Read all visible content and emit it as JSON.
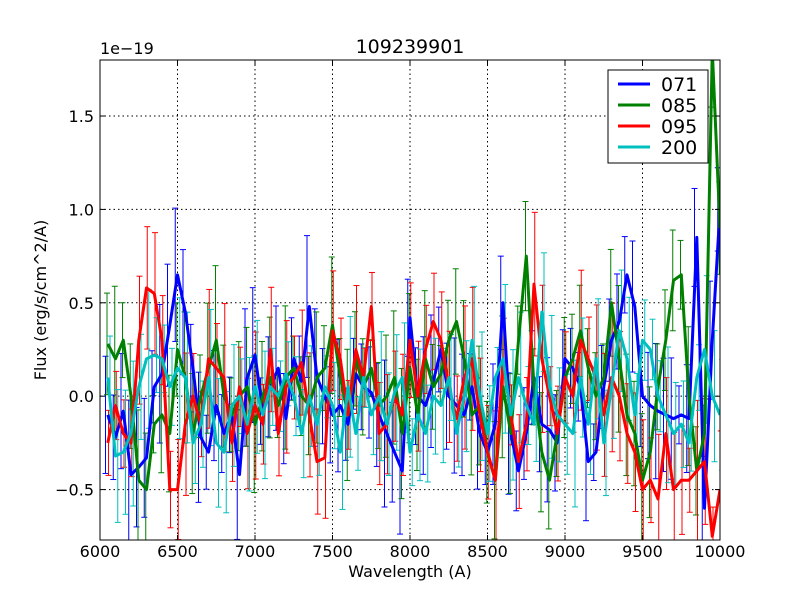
{
  "chart_data": {
    "type": "line",
    "title": "109239901",
    "xlabel": "Wavelength (A)",
    "ylabel": "Flux (erg/s/cm^2/A)",
    "offset_label": "1e−19",
    "xlim": [
      6000,
      10000
    ],
    "ylim": [
      -0.77,
      1.8
    ],
    "grid": true,
    "legend_position": "top-right",
    "x_ticks": [
      6000,
      6500,
      7000,
      7500,
      8000,
      8500,
      9000,
      9500,
      10000
    ],
    "x_tick_labels": [
      "6000",
      "6500",
      "7000",
      "7500",
      "8000",
      "8500",
      "9000",
      "9500",
      "10000"
    ],
    "y_ticks": [
      -0.5,
      0.0,
      0.5,
      1.0,
      1.5
    ],
    "y_tick_labels": [
      "−0.5",
      "0.0",
      "0.5",
      "1.0",
      "1.5"
    ],
    "x": [
      6050,
      6100,
      6150,
      6200,
      6250,
      6300,
      6350,
      6400,
      6450,
      6500,
      6550,
      6600,
      6650,
      6700,
      6750,
      6800,
      6850,
      6900,
      6950,
      7000,
      7050,
      7100,
      7150,
      7200,
      7250,
      7300,
      7350,
      7400,
      7450,
      7500,
      7550,
      7600,
      7650,
      7700,
      7750,
      7800,
      7850,
      7900,
      7950,
      8000,
      8050,
      8100,
      8150,
      8200,
      8250,
      8300,
      8350,
      8400,
      8450,
      8500,
      8550,
      8600,
      8650,
      8700,
      8750,
      8800,
      8850,
      8900,
      8950,
      9000,
      9050,
      9100,
      9150,
      9200,
      9250,
      9300,
      9350,
      9400,
      9450,
      9500,
      9550,
      9600,
      9650,
      9700,
      9750,
      9800,
      9850,
      9900,
      9950,
      10000
    ],
    "series": [
      {
        "name": "071",
        "color": "#0000ff",
        "values": [
          -0.1,
          -0.22,
          -0.08,
          -0.42,
          -0.38,
          -0.33,
          0.05,
          0.12,
          0.38,
          0.65,
          0.45,
          0.15,
          -0.22,
          -0.3,
          -0.05,
          -0.2,
          -0.1,
          -0.42,
          0.1,
          0.22,
          -0.08,
          0.05,
          0.15,
          -0.12,
          0.2,
          0.08,
          0.48,
          0.1,
          0.0,
          -0.1,
          -0.05,
          -0.15,
          0.12,
          0.05,
          0.02,
          -0.1,
          -0.2,
          -0.3,
          -0.4,
          0.42,
          0.0,
          -0.05,
          0.08,
          0.25,
          0.0,
          -0.05,
          -0.1,
          0.05,
          -0.2,
          -0.3,
          -0.15,
          0.5,
          -0.2,
          -0.4,
          -0.2,
          0.1,
          -0.15,
          -0.18,
          -0.25,
          0.2,
          0.15,
          0.05,
          -0.35,
          -0.3,
          0.05,
          0.3,
          0.4,
          0.65,
          0.48,
          0.0,
          -0.05,
          -0.08,
          -0.1,
          -0.12,
          -0.1,
          -0.12,
          0.85,
          -0.6,
          0.3,
          1.0
        ]
      },
      {
        "name": "085",
        "color": "#008000",
        "values": [
          0.28,
          0.2,
          0.3,
          0.0,
          -0.45,
          -0.5,
          -0.15,
          -0.1,
          -0.2,
          0.25,
          0.1,
          -0.2,
          0.0,
          0.15,
          0.3,
          0.0,
          -0.1,
          0.0,
          0.05,
          -0.15,
          0.0,
          0.1,
          -0.05,
          0.1,
          0.15,
          0.0,
          -0.05,
          0.1,
          0.15,
          0.38,
          0.1,
          -0.1,
          0.2,
          0.05,
          0.15,
          -0.05,
          0.0,
          0.1,
          -0.2,
          0.15,
          -0.1,
          0.2,
          0.05,
          0.12,
          0.3,
          0.4,
          0.2,
          -0.1,
          -0.05,
          -0.3,
          -0.45,
          0.05,
          -0.2,
          0.3,
          0.75,
          0.05,
          -0.3,
          -0.45,
          -0.2,
          0.1,
          0.2,
          0.35,
          0.15,
          0.0,
          0.1,
          0.5,
          0.2,
          -0.1,
          -0.2,
          -0.45,
          -0.3,
          0.05,
          0.3,
          0.62,
          0.65,
          0.0,
          -0.4,
          -0.2,
          1.85,
          0.9
        ]
      },
      {
        "name": "095",
        "color": "#ff0000",
        "values": [
          -0.25,
          -0.05,
          -0.2,
          -0.25,
          0.3,
          0.58,
          0.55,
          0.3,
          -0.5,
          -0.5,
          -0.15,
          0.0,
          -0.15,
          0.2,
          0.15,
          0.1,
          -0.25,
          0.05,
          -0.2,
          -0.05,
          -0.15,
          0.25,
          -0.2,
          0.05,
          0.1,
          0.18,
          -0.1,
          -0.35,
          -0.33,
          0.35,
          0.2,
          -0.1,
          0.25,
          0.1,
          0.48,
          -0.2,
          -0.15,
          0.0,
          -0.1,
          0.3,
          0.0,
          0.25,
          0.4,
          0.3,
          0.05,
          -0.12,
          0.1,
          0.2,
          -0.1,
          -0.3,
          -0.45,
          0.2,
          -0.1,
          -0.35,
          -0.15,
          0.6,
          0.2,
          0.0,
          -0.2,
          0.1,
          0.0,
          0.3,
          0.2,
          0.1,
          -0.1,
          0.1,
          0.0,
          -0.2,
          -0.3,
          -0.5,
          -0.45,
          -0.55,
          -0.2,
          -0.5,
          -0.45,
          -0.45,
          -0.4,
          -0.35,
          -0.75,
          -0.5
        ]
      },
      {
        "name": "200",
        "color": "#00bfbf",
        "values": [
          0.1,
          -0.32,
          -0.3,
          -0.2,
          0.05,
          0.2,
          0.22,
          0.2,
          0.05,
          0.15,
          0.1,
          -0.25,
          -0.15,
          0.1,
          -0.25,
          -0.3,
          -0.05,
          0.0,
          -0.15,
          0.05,
          -0.1,
          0.05,
          0.0,
          0.12,
          0.0,
          -0.2,
          0.0,
          -0.15,
          0.05,
          -0.05,
          -0.3,
          0.05,
          -0.2,
          0.1,
          -0.1,
          0.0,
          -0.15,
          0.02,
          0.1,
          -0.3,
          -0.1,
          -0.2,
          0.0,
          -0.05,
          0.1,
          -0.2,
          0.0,
          0.3,
          0.0,
          -0.2,
          0.1,
          0.2,
          -0.1,
          0.1,
          -0.05,
          -0.15,
          0.45,
          0.05,
          -0.1,
          -0.15,
          -0.2,
          0.1,
          -0.15,
          0.2,
          -0.25,
          0.05,
          0.35,
          0.2,
          -0.1,
          0.3,
          0.25,
          0.0,
          -0.1,
          -0.2,
          -0.15,
          -0.25,
          0.1,
          0.25,
          0.0,
          -0.1
        ]
      }
    ]
  }
}
